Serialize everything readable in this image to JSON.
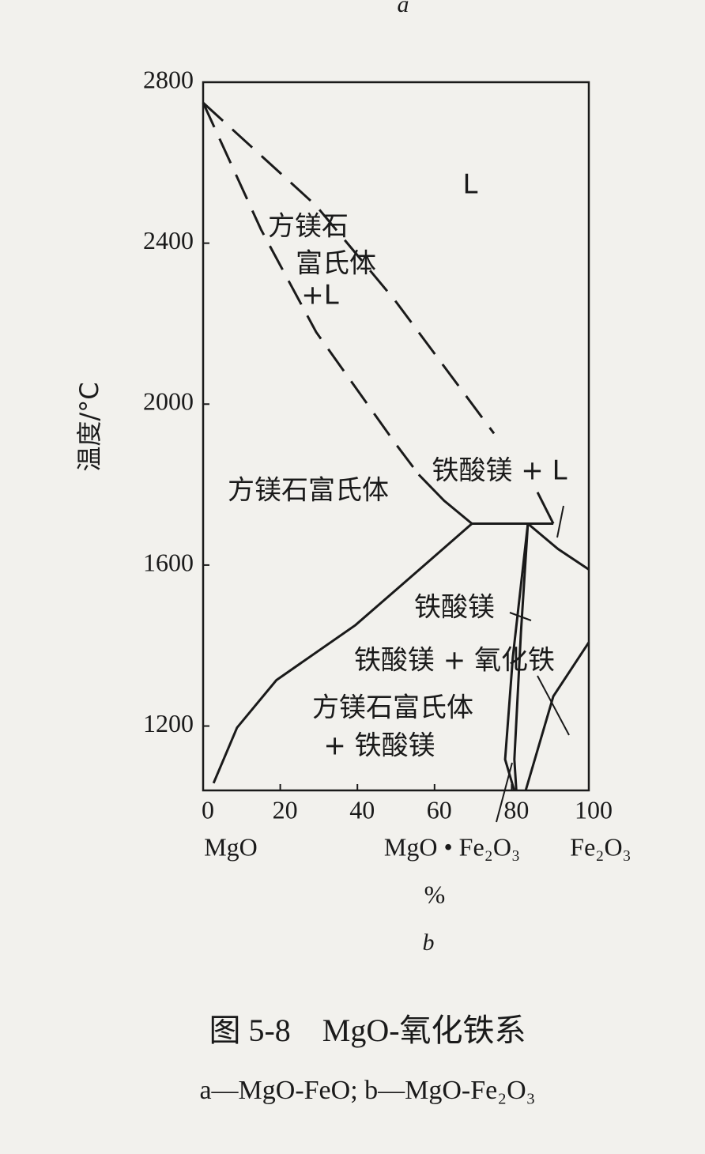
{
  "chart_data": {
    "type": "line",
    "top_label": "a",
    "xlabel": "%",
    "ylabel": "温度/°C",
    "panel_label": "b",
    "caption": "图 5-8　MgO-氧化铁系",
    "subcaption": "a—MgO-FeO; b—MgO-Fe₂O₃",
    "xlim": [
      0,
      100
    ],
    "xticks": [
      0,
      20,
      40,
      60,
      80,
      100
    ],
    "ylim": [
      1040,
      2800
    ],
    "yticks": [
      1200,
      1600,
      2000,
      2400,
      2800
    ],
    "grid": false,
    "composition_labels": [
      "MgO",
      "MgO • Fe₂O₃",
      "Fe₂O₃"
    ],
    "annotations": [
      "L",
      "方镁石",
      "富氏体",
      "+L",
      "铁酸镁 + L",
      "方镁石富氏体",
      "铁酸镁",
      "铁酸镁 + 氧化铁",
      "方镁石富氏体",
      "+ 铁酸镁"
    ],
    "series": [
      {
        "color": "#1a1a1a",
        "dashed": true,
        "x": [
          0,
          29.3,
          49.8,
          75.4
        ],
        "values": [
          2749,
          2493,
          2257,
          1927
        ]
      },
      {
        "color": "#1a1a1a",
        "dashed": true,
        "x": [
          0,
          15,
          29.3,
          49.8,
          55.9
        ],
        "values": [
          2749,
          2434,
          2179,
          1903,
          1825
        ]
      },
      {
        "color": "#1a1a1a",
        "dashed": false,
        "x": [
          55.9,
          62.5,
          69.7,
          90.8
        ],
        "values": [
          1825,
          1760,
          1703,
          1703
        ]
      },
      {
        "color": "#1a1a1a",
        "dashed": false,
        "x": [
          86.7,
          90.8
        ],
        "values": [
          1781,
          1703
        ]
      },
      {
        "color": "#1a1a1a",
        "dashed": false,
        "x": [
          84.2,
          92,
          100
        ],
        "values": [
          1703,
          1640,
          1589
        ]
      },
      {
        "color": "#1a1a1a",
        "dashed": false,
        "x": [
          69.7,
          58,
          39.5,
          19,
          8.8,
          2.7
        ],
        "values": [
          1703,
          1605,
          1451,
          1314,
          1196,
          1058
        ]
      },
      {
        "color": "#1a1a1a",
        "dashed": false,
        "x": [
          84.2,
          80.3,
          78.3,
          80.7
        ],
        "values": [
          1703,
          1372,
          1117,
          1039
        ]
      },
      {
        "color": "#1a1a1a",
        "dashed": false,
        "x": [
          84.2,
          82.4,
          80.7,
          81.2
        ],
        "values": [
          1703,
          1432,
          1117,
          1039
        ]
      },
      {
        "color": "#1a1a1a",
        "dashed": false,
        "x": [
          100,
          90.8,
          83.6
        ],
        "values": [
          1408,
          1274,
          1039
        ]
      }
    ]
  }
}
